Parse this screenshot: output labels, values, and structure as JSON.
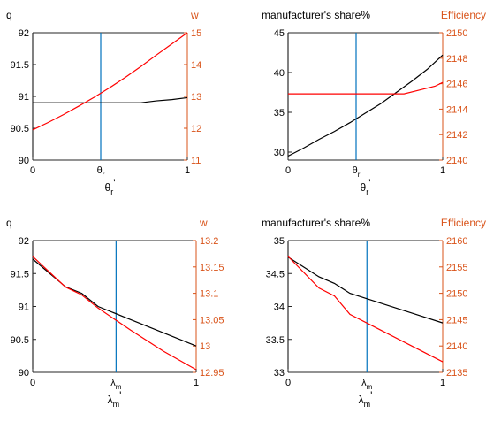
{
  "colors": {
    "left_axis": "#000000",
    "right_axis": "#D95319",
    "marker": "#0072BD",
    "series_black": "#000000",
    "series_red": "#FF0000"
  },
  "chart_data": [
    {
      "type": "line",
      "left_label": "q",
      "right_label": "w",
      "marker_label": "θ",
      "marker_sub": "r",
      "xlabel_sym": "θ",
      "xlabel_sub": "r",
      "xlabel_prime": "'",
      "xlim": [
        0,
        1
      ],
      "x_ticks": [
        "0",
        "1"
      ],
      "marker_x": 0.44,
      "ylim_left": [
        90,
        92
      ],
      "y_ticks_left": [
        "90",
        "90.5",
        "91",
        "91.5",
        "92"
      ],
      "ylim_right": [
        11,
        15
      ],
      "y_ticks_right": [
        "11",
        "12",
        "13",
        "14",
        "15"
      ],
      "series": [
        {
          "axis": "left",
          "color": "#000000",
          "x": [
            0,
            0.2,
            0.4,
            0.6,
            0.7,
            0.8,
            0.9,
            1.0
          ],
          "y": [
            90.9,
            90.9,
            90.9,
            90.9,
            90.9,
            90.93,
            90.95,
            90.98
          ]
        },
        {
          "axis": "right",
          "color": "#FF0000",
          "x": [
            0,
            0.1,
            0.2,
            0.3,
            0.4,
            0.5,
            0.6,
            0.7,
            0.8,
            0.9,
            1.0
          ],
          "y": [
            11.95,
            12.18,
            12.43,
            12.7,
            12.98,
            13.28,
            13.6,
            13.94,
            14.3,
            14.65,
            15.0
          ]
        }
      ]
    },
    {
      "type": "line",
      "left_label": "manufacturer's share%",
      "right_label": "Efficiency",
      "marker_label": "θ",
      "marker_sub": "r",
      "xlabel_sym": "θ",
      "xlabel_sub": "r",
      "xlabel_prime": "'",
      "xlim": [
        0,
        1
      ],
      "x_ticks": [
        "0",
        "1"
      ],
      "marker_x": 0.44,
      "ylim_left": [
        29,
        45
      ],
      "y_ticks_left": [
        "30",
        "35",
        "40",
        "45"
      ],
      "ylim_right": [
        2140,
        2150
      ],
      "y_ticks_right": [
        "2140",
        "2142",
        "2144",
        "2146",
        "2148",
        "2150"
      ],
      "series": [
        {
          "axis": "left",
          "color": "#000000",
          "x": [
            0,
            0.1,
            0.2,
            0.3,
            0.4,
            0.5,
            0.6,
            0.7,
            0.8,
            0.9,
            1.0
          ],
          "y": [
            29.5,
            30.5,
            31.6,
            32.6,
            33.7,
            34.9,
            36.1,
            37.5,
            38.9,
            40.4,
            42.2
          ]
        },
        {
          "axis": "right",
          "color": "#FF0000",
          "x": [
            0,
            0.2,
            0.4,
            0.6,
            0.75,
            0.85,
            0.95,
            1.0
          ],
          "y": [
            2145.2,
            2145.2,
            2145.2,
            2145.2,
            2145.2,
            2145.5,
            2145.8,
            2146.1
          ]
        }
      ]
    },
    {
      "type": "line",
      "left_label": "q",
      "right_label": "w",
      "marker_label": "λ",
      "marker_sub": "m",
      "xlabel_sym": "λ",
      "xlabel_sub": "m",
      "xlabel_prime": "'",
      "xlim": [
        0,
        1
      ],
      "x_ticks": [
        "0",
        "1"
      ],
      "marker_x": 0.51,
      "ylim_left": [
        90,
        92
      ],
      "y_ticks_left": [
        "90",
        "90.5",
        "91",
        "91.5",
        "92"
      ],
      "ylim_right": [
        12.95,
        13.2
      ],
      "y_ticks_right": [
        "12.95",
        "13",
        "13.05",
        "13.1",
        "13.15",
        "13.2"
      ],
      "series": [
        {
          "axis": "left",
          "color": "#000000",
          "x": [
            0,
            0.2,
            0.3,
            0.4,
            0.6,
            0.8,
            1.0
          ],
          "y": [
            91.72,
            91.3,
            91.2,
            91.0,
            90.8,
            90.6,
            90.4
          ]
        },
        {
          "axis": "right",
          "color": "#FF0000",
          "x": [
            0,
            0.2,
            0.3,
            0.4,
            0.6,
            0.8,
            1.0
          ],
          "y": [
            13.17,
            13.112,
            13.097,
            13.072,
            13.03,
            12.99,
            12.955
          ]
        }
      ]
    },
    {
      "type": "line",
      "left_label": "manufacturer's share%",
      "right_label": "Efficiency",
      "marker_label": "λ",
      "marker_sub": "m",
      "xlabel_sym": "λ",
      "xlabel_sub": "m",
      "xlabel_prime": "'",
      "xlim": [
        0,
        1
      ],
      "x_ticks": [
        "0",
        "1"
      ],
      "marker_x": 0.51,
      "ylim_left": [
        33,
        35
      ],
      "y_ticks_left": [
        "33",
        "33.5",
        "34",
        "34.5",
        "35"
      ],
      "ylim_right": [
        2135,
        2160
      ],
      "y_ticks_right": [
        "2135",
        "2140",
        "2145",
        "2150",
        "2155",
        "2160"
      ],
      "series": [
        {
          "axis": "left",
          "color": "#000000",
          "x": [
            0,
            0.2,
            0.3,
            0.4,
            0.6,
            0.8,
            1.0
          ],
          "y": [
            34.75,
            34.45,
            34.35,
            34.2,
            34.05,
            33.9,
            33.75
          ]
        },
        {
          "axis": "right",
          "color": "#FF0000",
          "x": [
            0,
            0.2,
            0.3,
            0.4,
            0.6,
            0.8,
            1.0
          ],
          "y": [
            2157,
            2151,
            2149.5,
            2146,
            2143,
            2140,
            2137
          ]
        }
      ]
    }
  ]
}
